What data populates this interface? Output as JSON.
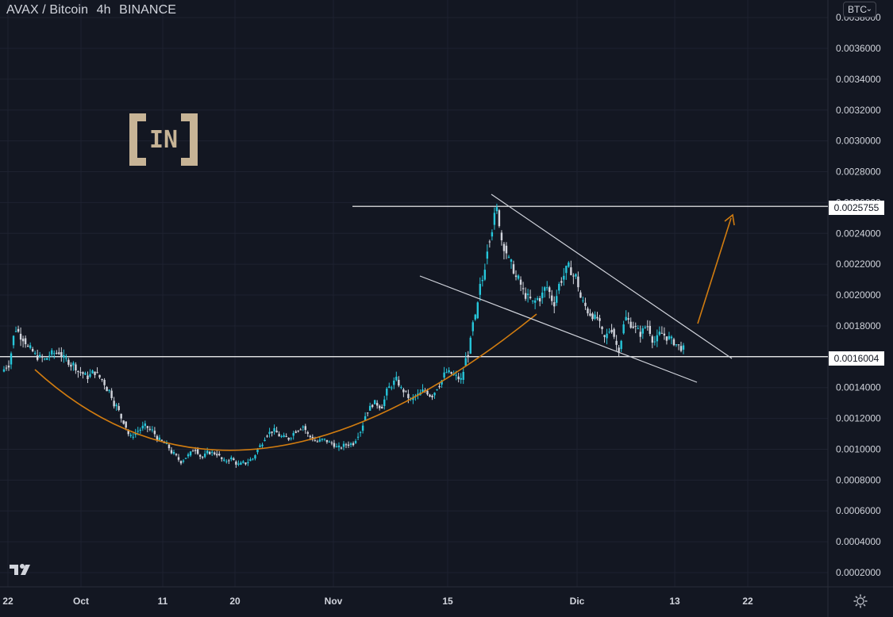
{
  "title": {
    "symbol": "AVAX / Bitcoin",
    "interval": "4h",
    "exchange": "BINANCE"
  },
  "currency_button": {
    "label": "BTC",
    "chevron": "⌄"
  },
  "watermark_logo": "IN",
  "chart_data": {
    "type": "candlestick",
    "x_ticks": [
      "22",
      "Oct",
      "11",
      "20",
      "Nov",
      "15",
      "Dic",
      "13",
      "22"
    ],
    "y_ticks": [
      "0.0002000",
      "0.0004000",
      "0.0006000",
      "0.0008000",
      "0.0010000",
      "0.0012000",
      "0.0014000",
      "0.0016000",
      "0.0018000",
      "0.0020000",
      "0.0022000",
      "0.0024000",
      "0.0026000",
      "0.0028000",
      "0.0030000",
      "0.0032000",
      "0.0034000",
      "0.0036000",
      "0.0038000"
    ],
    "ylim": [
      0.0001,
      0.0038
    ],
    "price_levels": [
      {
        "value": 0.0025755,
        "label": "0.0025755"
      },
      {
        "value": 0.0016004,
        "label": "0.0016004"
      }
    ],
    "close_series": [
      0.00155,
      0.00178,
      0.00172,
      0.00165,
      0.0016,
      0.00158,
      0.00162,
      0.00163,
      0.00158,
      0.00155,
      0.0015,
      0.00147,
      0.0015,
      0.00145,
      0.00138,
      0.00128,
      0.00118,
      0.00108,
      0.00112,
      0.00115,
      0.00112,
      0.00106,
      0.00103,
      0.00097,
      0.00092,
      0.00096,
      0.001,
      0.00095,
      0.00098,
      0.00097,
      0.00092,
      0.00094,
      0.0009,
      0.00091,
      0.00094,
      0.00102,
      0.0011,
      0.00112,
      0.00108,
      0.00107,
      0.00112,
      0.00115,
      0.00108,
      0.00105,
      0.00106,
      0.00104,
      0.00101,
      0.00103,
      0.00104,
      0.00112,
      0.00125,
      0.0013,
      0.00128,
      0.0014,
      0.00145,
      0.00138,
      0.00132,
      0.00135,
      0.00138,
      0.00135,
      0.00142,
      0.0015,
      0.00148,
      0.00145,
      0.00162,
      0.00185,
      0.0021,
      0.00238,
      0.00255,
      0.00232,
      0.0022,
      0.0021,
      0.002,
      0.00195,
      0.00198,
      0.00205,
      0.00195,
      0.0021,
      0.00218,
      0.00212,
      0.00195,
      0.00188,
      0.00185,
      0.00172,
      0.00178,
      0.00165,
      0.00185,
      0.0018,
      0.00175,
      0.0018,
      0.0017,
      0.00175,
      0.00172,
      0.00168,
      0.00165
    ],
    "drawings": [
      {
        "type": "cup-arc",
        "color": "#d17c10"
      },
      {
        "type": "upper-trendline",
        "color": "#d1d4dc"
      },
      {
        "type": "lower-trendline",
        "color": "#d1d4dc"
      },
      {
        "type": "target-arrow",
        "color": "#d17c10"
      }
    ],
    "colors": {
      "up": "#26c6da",
      "down": "#d1d4dc",
      "background": "#131722",
      "grid": "#1e2230"
    }
  }
}
